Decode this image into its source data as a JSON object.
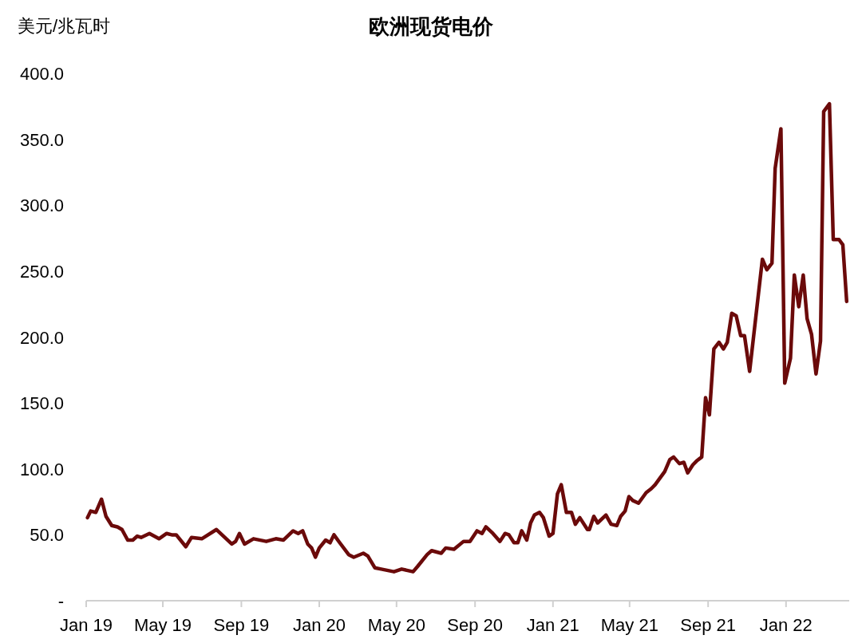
{
  "chart_data": {
    "type": "line",
    "title": "欧洲现货电价",
    "ylabel": "美元/兆瓦时",
    "x": [
      "2019-01-03",
      "2019-01-08",
      "2019-01-16",
      "2019-01-25",
      "2019-02-01",
      "2019-02-10",
      "2019-02-19",
      "2019-02-26",
      "2019-03-07",
      "2019-03-15",
      "2019-03-22",
      "2019-03-28",
      "2019-04-10",
      "2019-04-25",
      "2019-05-07",
      "2019-05-15",
      "2019-05-22",
      "2019-06-06",
      "2019-06-15",
      "2019-07-01",
      "2019-07-24",
      "2019-08-17",
      "2019-08-23",
      "2019-08-29",
      "2019-09-06",
      "2019-09-20",
      "2019-10-10",
      "2019-10-25",
      "2019-11-06",
      "2019-11-21",
      "2019-11-29",
      "2019-12-06",
      "2019-12-14",
      "2019-12-20",
      "2019-12-26",
      "2020-01-01",
      "2020-01-11",
      "2020-01-18",
      "2020-01-24",
      "2020-02-02",
      "2020-02-16",
      "2020-02-24",
      "2020-03-10",
      "2020-03-17",
      "2020-03-28",
      "2020-04-07",
      "2020-04-27",
      "2020-05-09",
      "2020-05-27",
      "2020-06-03",
      "2020-06-18",
      "2020-06-25",
      "2020-07-10",
      "2020-07-17",
      "2020-07-30",
      "2020-08-14",
      "2020-08-24",
      "2020-09-04",
      "2020-09-12",
      "2020-09-18",
      "2020-09-29",
      "2020-10-10",
      "2020-10-18",
      "2020-10-24",
      "2020-11-01",
      "2020-11-07",
      "2020-11-13",
      "2020-11-21",
      "2020-11-27",
      "2020-12-03",
      "2020-12-11",
      "2020-12-17",
      "2020-12-26",
      "2021-01-01",
      "2021-01-08",
      "2021-01-14",
      "2021-01-22",
      "2021-01-30",
      "2021-02-05",
      "2021-02-12",
      "2021-02-24",
      "2021-02-27",
      "2021-03-06",
      "2021-03-12",
      "2021-03-25",
      "2021-04-02",
      "2021-04-11",
      "2021-04-17",
      "2021-04-24",
      "2021-04-30",
      "2021-05-06",
      "2021-05-15",
      "2021-05-27",
      "2021-06-04",
      "2021-06-10",
      "2021-06-25",
      "2021-07-03",
      "2021-07-09",
      "2021-07-18",
      "2021-07-25",
      "2021-07-31",
      "2021-08-08",
      "2021-08-14",
      "2021-08-22",
      "2021-08-28",
      "2021-09-03",
      "2021-09-10",
      "2021-09-18",
      "2021-09-25",
      "2021-10-01",
      "2021-10-08",
      "2021-10-15",
      "2021-10-22",
      "2021-10-28",
      "2021-11-05",
      "2021-11-25",
      "2021-12-02",
      "2021-12-10",
      "2021-12-15",
      "2021-12-24",
      "2021-12-30",
      "2022-01-08",
      "2022-01-14",
      "2022-01-21",
      "2022-01-28",
      "2022-02-03",
      "2022-02-10",
      "2022-02-17",
      "2022-02-24",
      "2022-03-01",
      "2022-03-10",
      "2022-03-16",
      "2022-03-25",
      "2022-03-31",
      "2022-04-06"
    ],
    "series": [
      {
        "color": "#6b0a0a",
        "values": [
          63,
          68,
          67,
          77,
          64,
          57,
          56,
          54,
          46,
          46,
          49,
          48,
          51,
          47,
          51,
          50,
          50,
          41,
          48,
          47,
          54,
          43,
          45,
          51,
          43,
          47,
          45,
          47,
          46,
          53,
          51,
          53,
          43,
          40,
          33,
          40,
          46,
          44,
          50,
          44,
          35,
          33,
          36,
          34,
          25,
          24,
          22,
          24,
          22,
          26,
          35,
          38,
          36,
          40,
          39,
          45,
          45,
          53,
          51,
          56,
          51,
          45,
          51,
          50,
          44,
          44,
          53,
          46,
          59,
          65,
          67,
          63,
          49,
          51,
          81,
          88,
          67,
          67,
          58,
          63,
          54,
          54,
          64,
          59,
          65,
          58,
          57,
          64,
          68,
          79,
          76,
          74,
          82,
          85,
          88,
          98,
          107,
          109,
          104,
          105,
          97,
          103,
          106,
          109,
          154,
          141,
          191,
          196,
          191,
          196,
          218,
          216,
          201,
          201,
          174,
          259,
          251,
          256,
          328,
          358,
          165,
          184,
          247,
          223,
          247,
          214,
          202,
          172,
          197,
          371,
          377,
          274,
          274,
          270,
          227
        ]
      }
    ],
    "xlim": [
      "2019-01-01",
      "2022-04-10"
    ],
    "xticks": [
      {
        "value": "2019-01-01",
        "label": "Jan 19"
      },
      {
        "value": "2019-05-01",
        "label": "May 19"
      },
      {
        "value": "2019-09-01",
        "label": "Sep 19"
      },
      {
        "value": "2020-01-01",
        "label": "Jan 20"
      },
      {
        "value": "2020-05-01",
        "label": "May 20"
      },
      {
        "value": "2020-09-01",
        "label": "Sep 20"
      },
      {
        "value": "2021-01-01",
        "label": "Jan 21"
      },
      {
        "value": "2021-05-01",
        "label": "May 21"
      },
      {
        "value": "2021-09-01",
        "label": "Sep 21"
      },
      {
        "value": "2022-01-01",
        "label": "Jan 22"
      }
    ],
    "ylim": [
      0,
      400
    ],
    "yticks": [
      {
        "value": 0,
        "label": "-"
      },
      {
        "value": 50,
        "label": "50.0"
      },
      {
        "value": 100,
        "label": "100.0"
      },
      {
        "value": 150,
        "label": "150.0"
      },
      {
        "value": 200,
        "label": "200.0"
      },
      {
        "value": 250,
        "label": "250.0"
      },
      {
        "value": 300,
        "label": "300.0"
      },
      {
        "value": 350,
        "label": "350.0"
      },
      {
        "value": 400,
        "label": "400.0"
      }
    ]
  }
}
